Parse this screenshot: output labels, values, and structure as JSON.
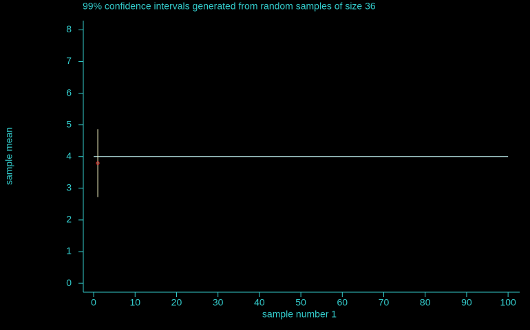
{
  "chart_data": {
    "type": "errorbar",
    "title": "99% confidence intervals generated from random samples of size 36",
    "x_label": "sample number 1",
    "y_label": "sample mean",
    "x": [
      1
    ],
    "values": [
      3.79
    ],
    "lower": [
      2.72
    ],
    "upper": [
      4.86
    ],
    "point_color": "#ff3333",
    "interval_color": "#ffffcc",
    "reference_line": {
      "value": 4,
      "x": [
        0,
        100
      ],
      "color": "#ccffff"
    },
    "axis_color": "#33cccc",
    "xlim": [
      -2.5,
      102.8
    ],
    "ylim": [
      -0.28,
      8.29
    ],
    "xticks": [
      0,
      10,
      20,
      30,
      40,
      50,
      60,
      70,
      80,
      90,
      100
    ],
    "yticks": [
      0,
      1,
      2,
      3,
      4,
      5,
      6,
      7,
      8
    ]
  }
}
